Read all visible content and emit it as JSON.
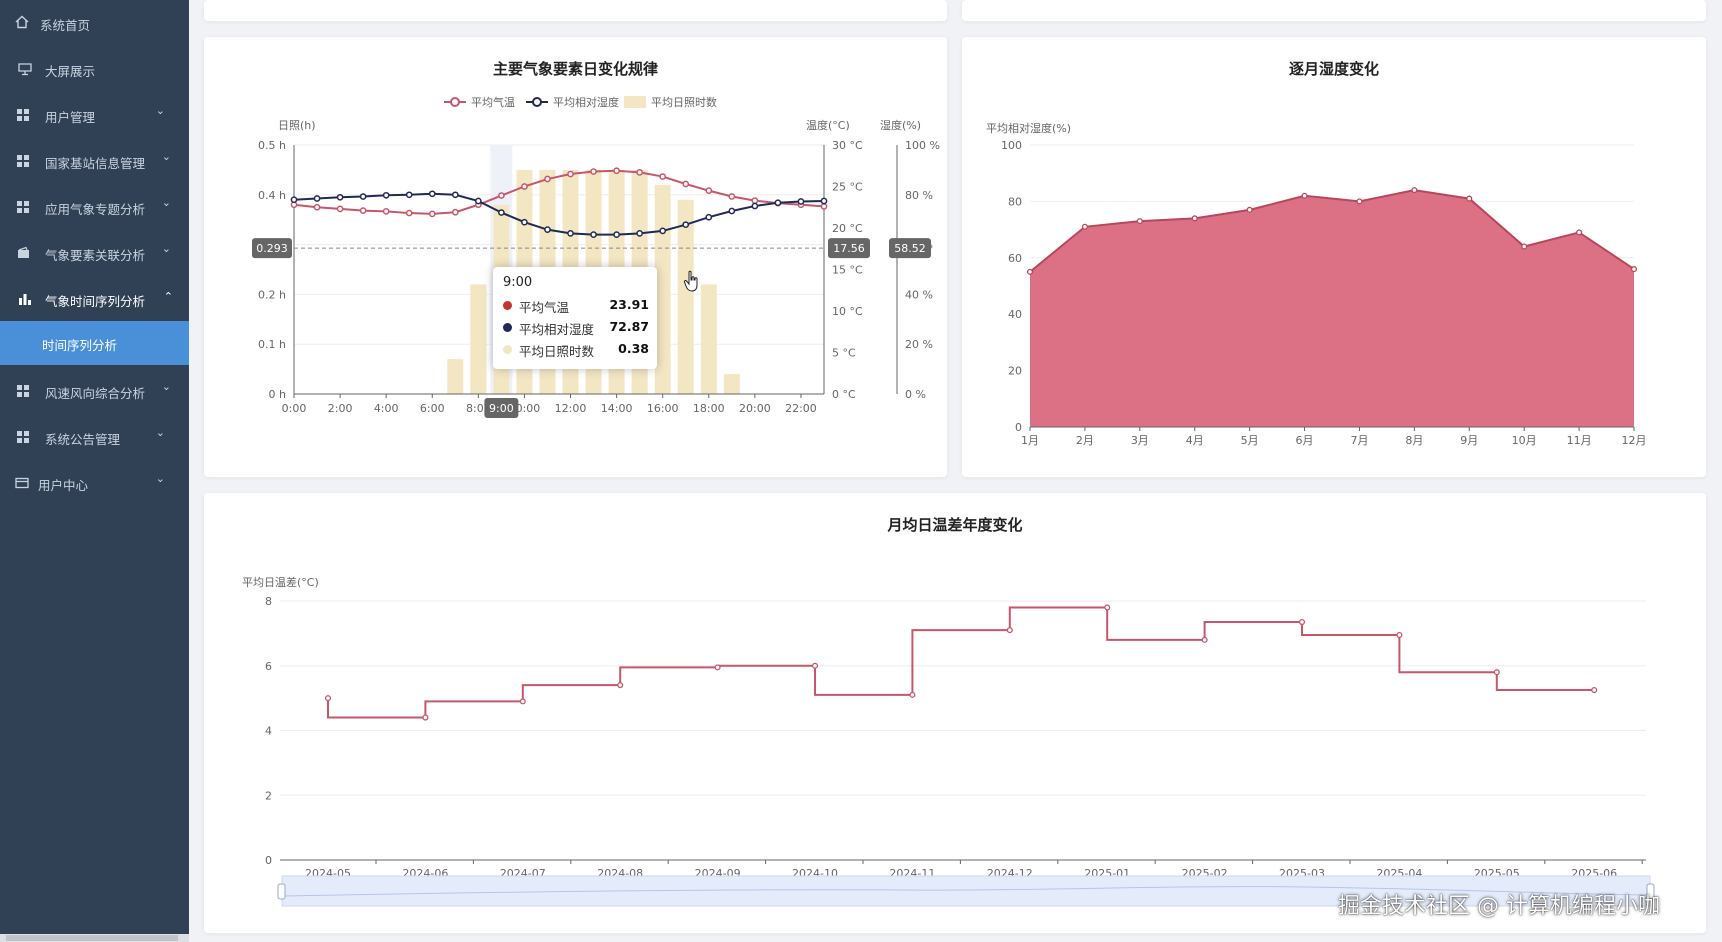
{
  "sidebar": {
    "items": [
      {
        "label": "系统首页",
        "icon": "home-icon"
      },
      {
        "label": "大屏展示",
        "icon": "monitor-icon"
      },
      {
        "label": "用户管理",
        "icon": "grid-icon"
      },
      {
        "label": "国家基站信息管理",
        "icon": "grid-icon"
      },
      {
        "label": "应用气象专题分析",
        "icon": "grid-icon"
      },
      {
        "label": "气象要素关联分析",
        "icon": "wallet-icon"
      },
      {
        "label": "气象时间序列分析",
        "icon": "bar-chart-icon"
      },
      {
        "label": "时间序列分析",
        "icon": ""
      },
      {
        "label": "风速风向综合分析",
        "icon": "grid-icon"
      },
      {
        "label": "系统公告管理",
        "icon": "grid-icon"
      },
      {
        "label": "用户中心",
        "icon": "card-icon"
      }
    ],
    "active_label": "时间序列分析",
    "expanded_label": "气象时间序列分析"
  },
  "diurnal": {
    "title": "主要气象要素日变化规律",
    "legend": [
      "平均气温",
      "平均相对湿度",
      "平均日照时数"
    ],
    "axis_sun": "日照(h)",
    "axis_temp": "温度(°C)",
    "axis_hum": "湿度(%)",
    "pointer_sun": "0.293",
    "pointer_temp": "17.56",
    "pointer_hum": "58.52",
    "pointer_x": "9:00",
    "tooltip": {
      "time": "9:00",
      "rows": [
        {
          "label": "平均气温",
          "value": "23.91",
          "color": "#c23531"
        },
        {
          "label": "平均相对湿度",
          "value": "72.87",
          "color": "#1f2a55"
        },
        {
          "label": "平均日照时数",
          "value": "0.38",
          "color": "#f2e6c4"
        }
      ]
    }
  },
  "humidity": {
    "title": "逐月湿度变化",
    "ylabel": "平均相对湿度(%)"
  },
  "temprange": {
    "title": "月均日温差年度变化",
    "ylabel": "平均日温差(°C)"
  },
  "watermark": "掘金技术社区 @ 计算机编程小咖",
  "colors": {
    "red": "#c8566a",
    "navy": "#1f2a55",
    "sun": "#f3e6c3",
    "sidebar": "#304156",
    "active": "#4a90d9"
  },
  "chart_data": [
    {
      "type": "line",
      "title": "主要气象要素日变化规律",
      "x": [
        "0:00",
        "1:00",
        "2:00",
        "3:00",
        "4:00",
        "5:00",
        "6:00",
        "7:00",
        "8:00",
        "9:00",
        "10:00",
        "11:00",
        "12:00",
        "13:00",
        "14:00",
        "15:00",
        "16:00",
        "17:00",
        "18:00",
        "19:00",
        "20:00",
        "21:00",
        "22:00",
        "23:00"
      ],
      "xticks": [
        "0:00",
        "2:00",
        "4:00",
        "6:00",
        "8:00",
        "10:00",
        "12:00",
        "14:00",
        "16:00",
        "18:00",
        "20:00",
        "22:00"
      ],
      "series": [
        {
          "name": "平均气温",
          "axis": "temp",
          "values": [
            22.8,
            22.5,
            22.3,
            22.1,
            22.0,
            21.8,
            21.7,
            21.9,
            22.8,
            23.91,
            25.0,
            25.9,
            26.5,
            26.8,
            26.9,
            26.7,
            26.2,
            25.3,
            24.5,
            23.8,
            23.3,
            23.0,
            22.8,
            22.6
          ]
        },
        {
          "name": "平均相对湿度",
          "axis": "hum",
          "values": [
            78.0,
            78.5,
            79.0,
            79.3,
            79.8,
            80.0,
            80.4,
            80.0,
            77.5,
            72.87,
            69.0,
            66.0,
            64.5,
            64.0,
            64.0,
            64.5,
            65.5,
            68.0,
            71.0,
            73.5,
            75.5,
            76.8,
            77.3,
            77.5
          ]
        },
        {
          "name": "平均日照时数",
          "axis": "sun",
          "type": "bar",
          "values": [
            0,
            0,
            0,
            0,
            0,
            0,
            0,
            0.07,
            0.22,
            0.38,
            0.45,
            0.45,
            0.45,
            0.45,
            0.45,
            0.45,
            0.42,
            0.39,
            0.22,
            0.04,
            0,
            0,
            0,
            0
          ]
        }
      ],
      "yaxes": {
        "sun": {
          "min": 0,
          "max": 0.5,
          "label": "日照(h)"
        },
        "temp": {
          "min": 0,
          "max": 30,
          "label": "温度(°C)"
        },
        "hum": {
          "min": 0,
          "max": 100,
          "label": "湿度(%)"
        }
      }
    },
    {
      "type": "area",
      "title": "逐月湿度变化",
      "categories": [
        "1月",
        "2月",
        "3月",
        "4月",
        "5月",
        "6月",
        "7月",
        "8月",
        "9月",
        "10月",
        "11月",
        "12月"
      ],
      "series": [
        {
          "values": [
            55,
            71,
            73,
            74,
            77,
            82,
            80,
            84,
            81,
            64,
            69,
            56
          ]
        }
      ],
      "ylabel": "平均相对湿度(%)",
      "ylim": [
        0,
        100
      ]
    },
    {
      "type": "line",
      "title": "月均日温差年度变化",
      "categories": [
        "2024-05",
        "2024-06",
        "2024-07",
        "2024-08",
        "2024-09",
        "2024-10",
        "2024-11",
        "2024-12",
        "2025-01",
        "2025-02",
        "2025-03",
        "2025-04",
        "2025-05",
        "2025-06"
      ],
      "series": [
        {
          "values": [
            5.0,
            4.4,
            4.9,
            5.4,
            5.95,
            6.0,
            5.1,
            7.1,
            7.8,
            6.8,
            7.35,
            6.95,
            5.8,
            5.25
          ],
          "step": true
        }
      ],
      "ylabel": "平均日温差(°C)",
      "ylim": [
        0,
        8
      ]
    }
  ]
}
